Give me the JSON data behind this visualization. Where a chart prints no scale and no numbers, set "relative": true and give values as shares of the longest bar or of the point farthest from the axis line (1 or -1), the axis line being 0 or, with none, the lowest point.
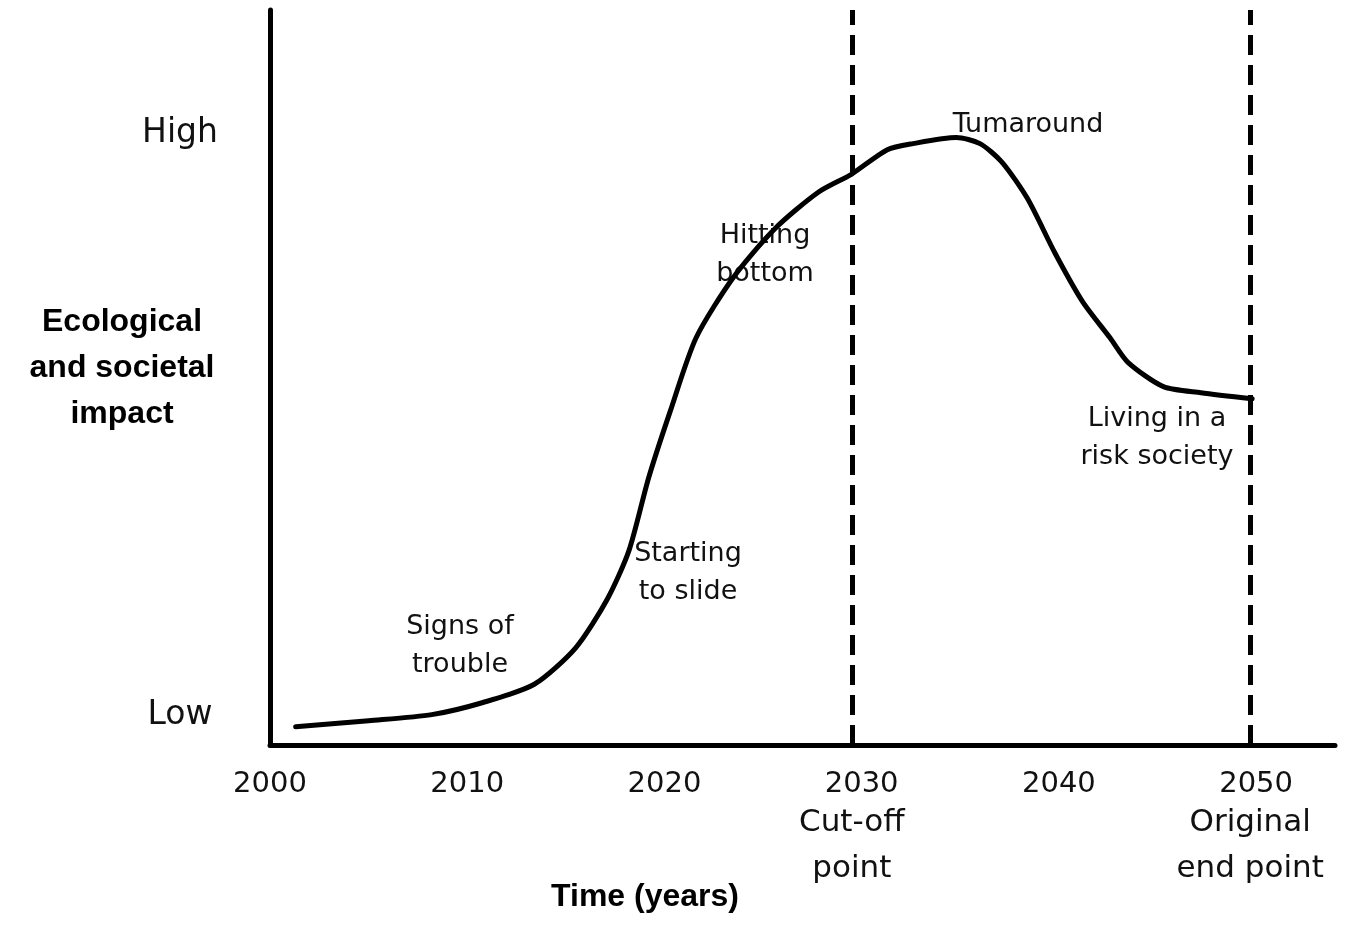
{
  "chart_data": {
    "type": "line",
    "relative": true,
    "xlabel": "Time (years)",
    "ylabel": "Ecological and societal impact",
    "x": [
      2001.3,
      2005.0,
      2008.2,
      2010.8,
      2013.4,
      2015.5,
      2017.1,
      2018.2,
      2019.2,
      2020.3,
      2021.6,
      2023.5,
      2025.6,
      2027.8,
      2029.5,
      2031.3,
      2032.6,
      2034.8,
      2036.0,
      2037.1,
      2038.4,
      2039.8,
      2041.2,
      2042.6,
      2043.5,
      2045.3,
      2047.2,
      2049.8
    ],
    "series": [
      {
        "color": "#000000",
        "values": [
          0.03,
          0.04,
          0.05,
          0.07,
          0.1,
          0.16,
          0.24,
          0.32,
          0.44,
          0.55,
          0.67,
          0.77,
          0.85,
          0.91,
          0.94,
          0.98,
          0.99,
          1.0,
          0.99,
          0.96,
          0.9,
          0.81,
          0.73,
          0.67,
          0.63,
          0.59,
          0.58,
          0.57
        ]
      }
    ],
    "xlim": [
      2000,
      2054
    ],
    "xticks": [
      2000,
      2010,
      2020,
      2030,
      2040,
      2050
    ],
    "ref_lines": [
      {
        "axis": "x",
        "value": 2029.5,
        "label": "Cut-off\npoint",
        "line_style": "dashed",
        "color": "#000000"
      },
      {
        "axis": "x",
        "value": 2049.7,
        "label": "Original\nend point",
        "line_style": "dashed",
        "color": "#000000"
      }
    ],
    "annotations": [
      "High",
      "Low",
      "Signs of\ntrouble",
      "Starting\nto slide",
      "Hitting\nbottom",
      "Tumaround",
      "Living in a\nrisk society"
    ],
    "grid": false,
    "marker": "none",
    "line_style": "solid"
  }
}
